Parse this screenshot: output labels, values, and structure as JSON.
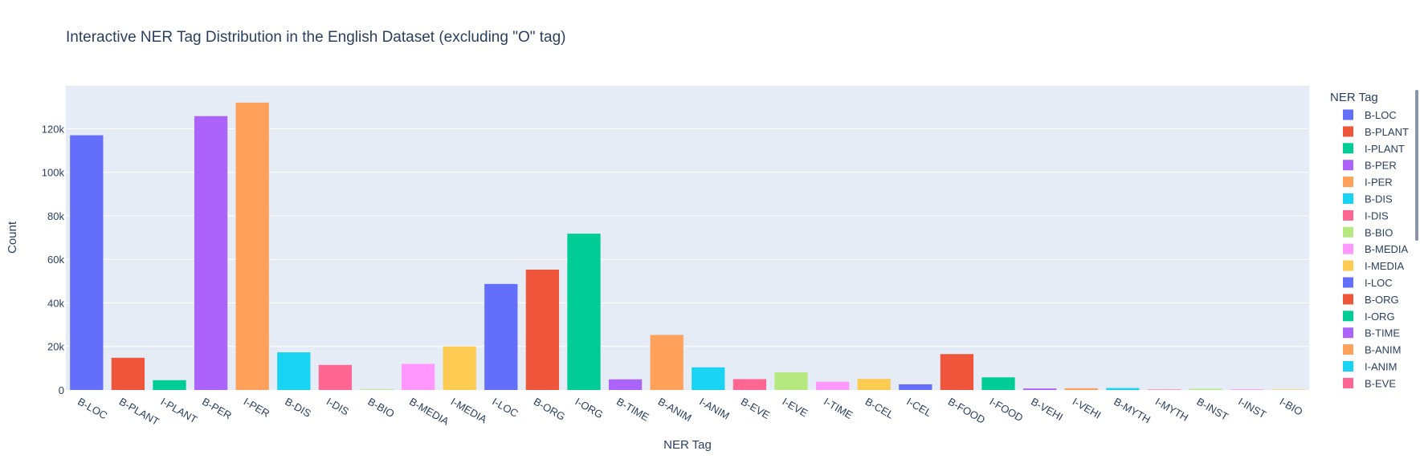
{
  "chart_data": {
    "type": "bar",
    "title": "Interactive NER Tag Distribution in the English Dataset (excluding \"O\" tag)",
    "xlabel": "NER Tag",
    "ylabel": "Count",
    "legend_title": "NER Tag",
    "legend_position": "right",
    "ylim": [
      0,
      140000
    ],
    "yticks": [
      0,
      20000,
      40000,
      60000,
      80000,
      100000,
      120000
    ],
    "ytick_labels": [
      "0",
      "20k",
      "40k",
      "60k",
      "80k",
      "100k",
      "120k"
    ],
    "grid": true,
    "categories": [
      "B-LOC",
      "B-PLANT",
      "I-PLANT",
      "B-PER",
      "I-PER",
      "B-DIS",
      "I-DIS",
      "B-BIO",
      "B-MEDIA",
      "I-MEDIA",
      "I-LOC",
      "B-ORG",
      "I-ORG",
      "B-TIME",
      "B-ANIM",
      "I-ANIM",
      "B-EVE",
      "I-EVE",
      "I-TIME",
      "B-CEL",
      "I-CEL",
      "B-FOOD",
      "I-FOOD",
      "B-VEHI",
      "I-VEHI",
      "B-MYTH",
      "I-MYTH",
      "B-INST",
      "I-INST",
      "I-BIO"
    ],
    "values": [
      117000,
      14800,
      4500,
      125800,
      132000,
      17300,
      11500,
      300,
      12000,
      20000,
      48700,
      55300,
      71800,
      4900,
      25300,
      10400,
      5000,
      8100,
      3800,
      5100,
      2600,
      16500,
      5800,
      700,
      800,
      900,
      200,
      500,
      300,
      200
    ],
    "colors": [
      "#636efa",
      "#ef553b",
      "#00cc96",
      "#ab63fa",
      "#ffa15a",
      "#19d3f3",
      "#ff6692",
      "#b6e880",
      "#ff97ff",
      "#fecb52",
      "#636efa",
      "#ef553b",
      "#00cc96",
      "#ab63fa",
      "#ffa15a",
      "#19d3f3",
      "#ff6692",
      "#b6e880",
      "#ff97ff",
      "#fecb52",
      "#636efa",
      "#ef553b",
      "#00cc96",
      "#ab63fa",
      "#ffa15a",
      "#19d3f3",
      "#ff6692",
      "#b6e880",
      "#ff97ff",
      "#fecb52"
    ],
    "legend_visible_count": 17
  }
}
